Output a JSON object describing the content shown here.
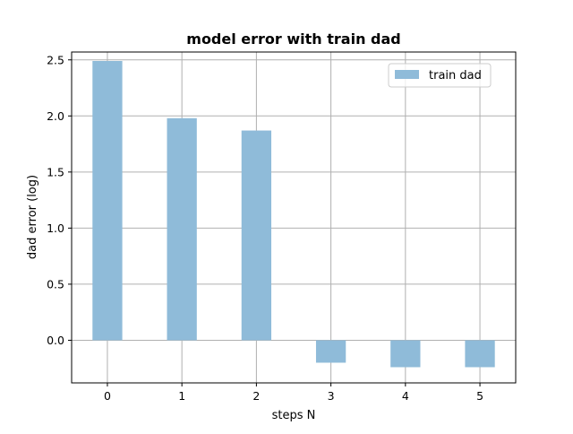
{
  "chart_data": {
    "type": "bar",
    "title": "model error with train dad",
    "xlabel": "steps N",
    "ylabel": "dad error (log)",
    "categories": [
      "0",
      "1",
      "2",
      "3",
      "4",
      "5"
    ],
    "series": [
      {
        "name": "train dad",
        "values": [
          2.49,
          1.98,
          1.87,
          -0.2,
          -0.24,
          -0.24
        ]
      }
    ],
    "xlim": [
      -0.48,
      5.48
    ],
    "ylim": [
      -0.38,
      2.57
    ],
    "yticks": [
      0.0,
      0.5,
      1.0,
      1.5,
      2.0,
      2.5
    ],
    "ytick_labels": [
      "0.0",
      "0.5",
      "1.0",
      "1.5",
      "2.0",
      "2.5"
    ],
    "xticks": [
      0,
      1,
      2,
      3,
      4,
      5
    ],
    "grid": true,
    "legend_position": "top-right",
    "bar_color": "#8fbbd9"
  }
}
